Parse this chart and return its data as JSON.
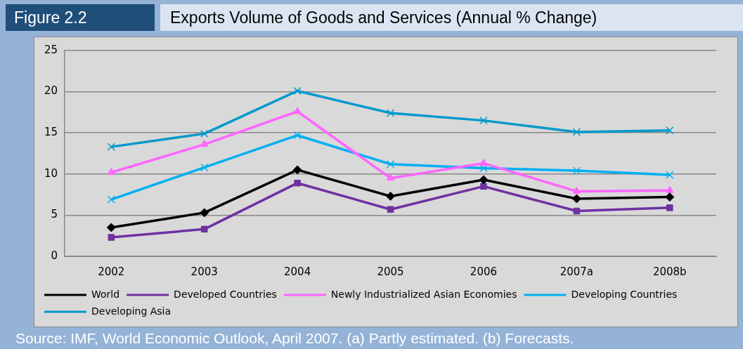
{
  "chart_data": {
    "type": "line",
    "title": "Exports Volume of Goods and Services (Annual % Change)",
    "annotations": [
      "Figure 2.2",
      "Source: IMF, World Economic Outlook, April 2007. (a) Partly estimated. (b) Forecasts."
    ],
    "categories": [
      "2002",
      "2003",
      "2004",
      "2005",
      "2006",
      "2007a",
      "2008b"
    ],
    "series": [
      {
        "name": "World",
        "color": "#000000",
        "marker": "diamond",
        "values": [
          3.5,
          5.3,
          10.5,
          7.3,
          9.3,
          7.0,
          7.2
        ]
      },
      {
        "name": "Developed Countries",
        "color": "#7030a0",
        "marker": "square",
        "values": [
          2.3,
          3.3,
          8.9,
          5.7,
          8.5,
          5.5,
          5.9
        ]
      },
      {
        "name": "Newly Industrialized Asian Economies",
        "color": "#ff66ff",
        "marker": "triangle",
        "values": [
          10.2,
          13.6,
          17.6,
          9.5,
          11.3,
          7.9,
          8.0
        ]
      },
      {
        "name": "Developing Countries",
        "color": "#00b0f0",
        "marker": "cross",
        "values": [
          6.9,
          10.8,
          14.7,
          11.2,
          10.7,
          10.4,
          9.9
        ]
      },
      {
        "name": "Developing Asia",
        "color": "#0099cc",
        "marker": "cross",
        "values": [
          13.3,
          14.9,
          20.1,
          17.4,
          16.5,
          15.1,
          15.3
        ]
      }
    ],
    "ylim": [
      0,
      25
    ],
    "yticks": [
      0,
      5,
      10,
      15,
      20,
      25
    ],
    "grid": "y",
    "legend": "bottom",
    "line_style": "solid"
  }
}
